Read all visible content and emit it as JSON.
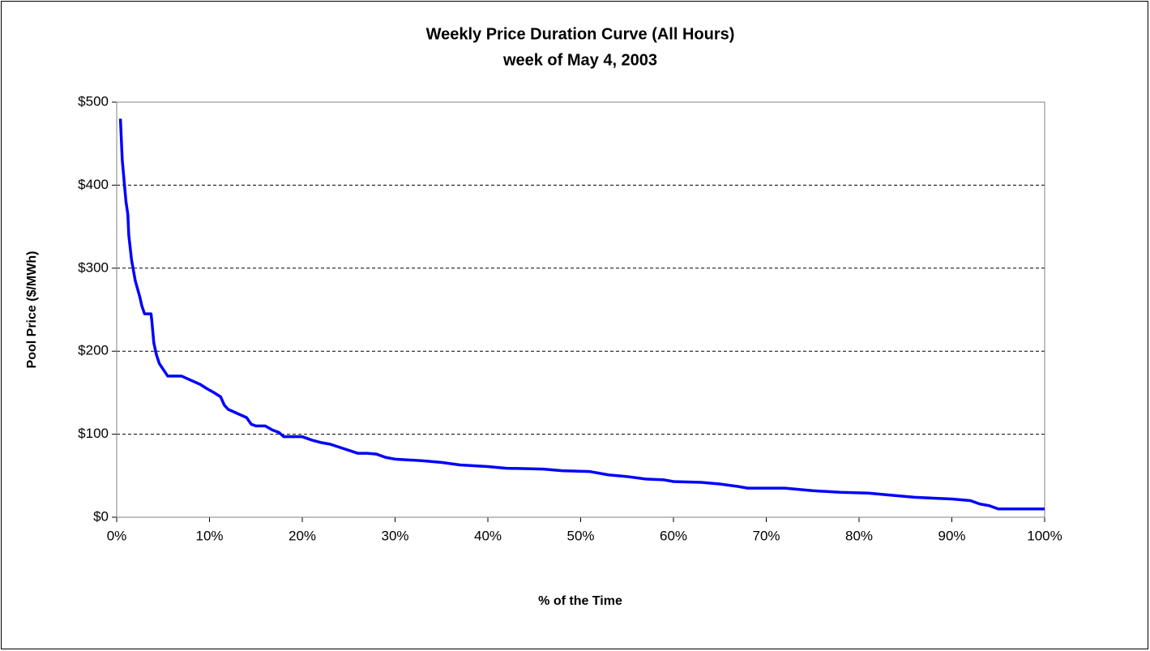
{
  "chart_data": {
    "type": "line",
    "title": "Weekly Price Duration Curve (All Hours)",
    "subtitle": "week of May 4, 2003",
    "x_label": "% of the Time",
    "y_label": "Pool Price ($/MWh)",
    "x": [
      0.4,
      0.6,
      1.0,
      1.2,
      1.3,
      1.6,
      2.0,
      2.5,
      2.7,
      3.0,
      3.7,
      3.8,
      4.0,
      4.3,
      4.6,
      5.2,
      5.5,
      7.0,
      8.0,
      9.0,
      9.7,
      10.5,
      11.2,
      11.6,
      12.0,
      13.0,
      14.0,
      14.5,
      15.0,
      16.0,
      16.8,
      17.5,
      18.0,
      20.0,
      21.0,
      22.0,
      23.0,
      26.0,
      27.0,
      28.0,
      29.0,
      30.0,
      33.0,
      35.0,
      37.0,
      40.0,
      42.0,
      46.0,
      48.0,
      51.0,
      53.0,
      55.0,
      57.0,
      59.0,
      60.0,
      63.0,
      65.0,
      67.0,
      68.0,
      72.0,
      75.0,
      78.0,
      81.0,
      84.0,
      86.0,
      88.0,
      90.0,
      92.0,
      93.0,
      94.0,
      95.0,
      100.0
    ],
    "series": [
      {
        "name": "Pool Price",
        "color": "#0000ff",
        "values": [
          480,
          430,
          380,
          365,
          340,
          310,
          285,
          265,
          255,
          245,
          245,
          235,
          210,
          195,
          185,
          175,
          170,
          170,
          165,
          160,
          155,
          150,
          145,
          135,
          130,
          125,
          120,
          112,
          110,
          110,
          105,
          102,
          97,
          97,
          93,
          90,
          88,
          77,
          77,
          76,
          72,
          70,
          68,
          66,
          63,
          61,
          59,
          58,
          56,
          55,
          51,
          49,
          46,
          45,
          43,
          42,
          40,
          37,
          35,
          35,
          32,
          30,
          29,
          26,
          24,
          23,
          22,
          20,
          16,
          14,
          10,
          10
        ]
      }
    ],
    "xlim": [
      0,
      100
    ],
    "xticks": [
      {
        "value": 0,
        "label": "0%"
      },
      {
        "value": 10,
        "label": "10%"
      },
      {
        "value": 20,
        "label": "20%"
      },
      {
        "value": 30,
        "label": "30%"
      },
      {
        "value": 40,
        "label": "40%"
      },
      {
        "value": 50,
        "label": "50%"
      },
      {
        "value": 60,
        "label": "60%"
      },
      {
        "value": 70,
        "label": "70%"
      },
      {
        "value": 80,
        "label": "80%"
      },
      {
        "value": 90,
        "label": "90%"
      },
      {
        "value": 100,
        "label": "100%"
      }
    ],
    "ylim": [
      0,
      500
    ],
    "yticks": [
      {
        "value": 0,
        "label": "$0"
      },
      {
        "value": 100,
        "label": "$100"
      },
      {
        "value": 200,
        "label": "$200"
      },
      {
        "value": 300,
        "label": "$300"
      },
      {
        "value": 400,
        "label": "$400"
      },
      {
        "value": 500,
        "label": "$500"
      }
    ],
    "grid": true
  }
}
